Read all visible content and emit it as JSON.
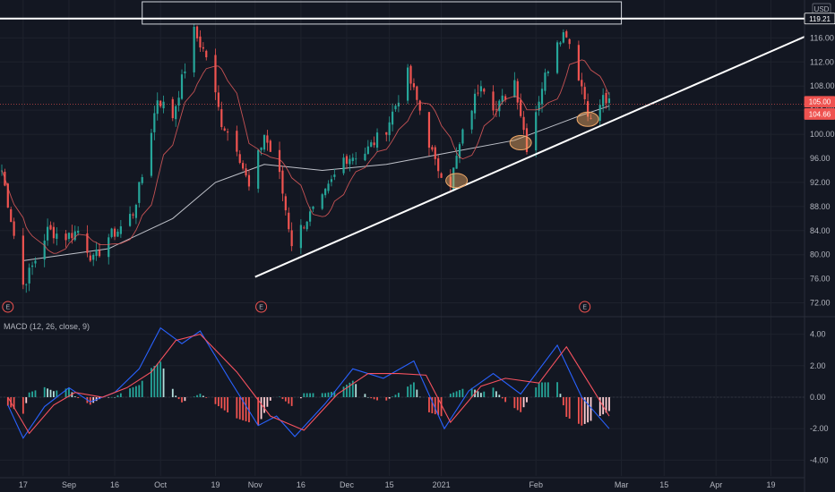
{
  "chart_data": [
    {
      "type": "candlestick",
      "currency": "USD",
      "ylim": [
        70,
        122
      ],
      "y_ticks": [
        72,
        76,
        80,
        84,
        88,
        92,
        96,
        100,
        104,
        108,
        112,
        116
      ],
      "y_tick_labels": [
        "72.00",
        "76.00",
        "80.00",
        "84.00",
        "88.00",
        "92.00",
        "96.00",
        "100.00",
        "104.00",
        "108.00",
        "112.00",
        "116.00"
      ],
      "x_tick_labels": [
        "17",
        "Sep",
        "16",
        "Oct",
        "19",
        "Nov",
        "16",
        "Dec",
        "15",
        "2021",
        "Feb",
        "Mar",
        "15",
        "Apr",
        "19"
      ],
      "price_labels": {
        "resistance": "119.21",
        "last": "105.00",
        "ma": "104.66"
      },
      "resistance_level": 119.21,
      "last_price": 105.0,
      "ma_value": 104.66,
      "earnings_markers": [
        "E",
        "E",
        "E"
      ],
      "colors": {
        "up": "#26a69a",
        "down": "#ef5350",
        "ma_long": "#d1d4dc",
        "ma_short": "#e45c5c",
        "trendline": "#ffffff"
      },
      "price_path": [
        {
          "date": "2020-08-10",
          "close": 94
        },
        {
          "date": "2020-08-13",
          "close": 86
        },
        {
          "date": "2020-08-17",
          "close": 75
        },
        {
          "date": "2020-08-20",
          "close": 78
        },
        {
          "date": "2020-08-25",
          "close": 84
        },
        {
          "date": "2020-08-31",
          "close": 83
        },
        {
          "date": "2020-09-04",
          "close": 84
        },
        {
          "date": "2020-09-09",
          "close": 79
        },
        {
          "date": "2020-09-14",
          "close": 83
        },
        {
          "date": "2020-09-17",
          "close": 84
        },
        {
          "date": "2020-09-22",
          "close": 87
        },
        {
          "date": "2020-09-25",
          "close": 93
        },
        {
          "date": "2020-09-30",
          "close": 106
        },
        {
          "date": "2020-10-05",
          "close": 103
        },
        {
          "date": "2020-10-12",
          "close": 117
        },
        {
          "date": "2020-10-16",
          "close": 113
        },
        {
          "date": "2020-10-21",
          "close": 102
        },
        {
          "date": "2020-10-26",
          "close": 98
        },
        {
          "date": "2020-10-30",
          "close": 91
        },
        {
          "date": "2020-11-04",
          "close": 100
        },
        {
          "date": "2020-11-09",
          "close": 93
        },
        {
          "date": "2020-11-13",
          "close": 82
        },
        {
          "date": "2020-11-18",
          "close": 86
        },
        {
          "date": "2020-11-23",
          "close": 89
        },
        {
          "date": "2020-11-30",
          "close": 96
        },
        {
          "date": "2020-12-07",
          "close": 97
        },
        {
          "date": "2020-12-14",
          "close": 101
        },
        {
          "date": "2020-12-21",
          "close": 110
        },
        {
          "date": "2020-12-25",
          "close": 104
        },
        {
          "date": "2020-12-30",
          "close": 95
        },
        {
          "date": "2021-01-04",
          "close": 92
        },
        {
          "date": "2021-01-08",
          "close": 100
        },
        {
          "date": "2021-01-14",
          "close": 109
        },
        {
          "date": "2021-01-19",
          "close": 104
        },
        {
          "date": "2021-01-25",
          "close": 109
        },
        {
          "date": "2021-01-29",
          "close": 98
        },
        {
          "date": "2021-02-03",
          "close": 108
        },
        {
          "date": "2021-02-08",
          "close": 116
        },
        {
          "date": "2021-02-11",
          "close": 117
        },
        {
          "date": "2021-02-16",
          "close": 108
        },
        {
          "date": "2021-02-19",
          "close": 102
        },
        {
          "date": "2021-02-23",
          "close": 106
        },
        {
          "date": "2021-02-25",
          "close": 105
        }
      ],
      "ma_long": [
        {
          "date": "2020-08-17",
          "value": 79
        },
        {
          "date": "2020-09-14",
          "value": 81
        },
        {
          "date": "2020-10-05",
          "value": 86
        },
        {
          "date": "2020-10-19",
          "value": 92
        },
        {
          "date": "2020-11-04",
          "value": 95
        },
        {
          "date": "2020-11-23",
          "value": 94
        },
        {
          "date": "2020-12-14",
          "value": 95
        },
        {
          "date": "2021-01-04",
          "value": 97
        },
        {
          "date": "2021-01-25",
          "value": 99
        },
        {
          "date": "2021-02-15",
          "value": 103
        },
        {
          "date": "2021-02-25",
          "value": 104.7
        }
      ],
      "trendline": {
        "start": {
          "date": "2020-11-01",
          "value": 76.3
        },
        "end": {
          "date": "2021-04-30",
          "value": 116.2
        }
      },
      "resistance_zone": {
        "low": 118.3,
        "high": 122.0
      },
      "marked_lows": [
        {
          "date": "2021-01-06",
          "value": 92.3
        },
        {
          "date": "2021-01-27",
          "value": 98.6
        },
        {
          "date": "2021-02-18",
          "value": 102.5
        }
      ]
    },
    {
      "type": "line",
      "title": "MACD (12, 26, close, 9)",
      "ylim": [
        -5,
        5
      ],
      "y_ticks": [
        -4,
        -2,
        0,
        2,
        4
      ],
      "y_tick_labels": [
        "-4.00",
        "-2.00",
        "0.00",
        "2.00",
        "4.00"
      ],
      "series": [
        {
          "color": "#2962ff",
          "values": [
            {
              "date": "2020-08-12",
              "value": -0.5
            },
            {
              "date": "2020-08-17",
              "value": -2.6
            },
            {
              "date": "2020-08-24",
              "value": -0.6
            },
            {
              "date": "2020-09-01",
              "value": 0.6
            },
            {
              "date": "2020-09-08",
              "value": -0.3
            },
            {
              "date": "2020-09-16",
              "value": 0.3
            },
            {
              "date": "2020-09-24",
              "value": 1.8
            },
            {
              "date": "2020-10-01",
              "value": 4.4
            },
            {
              "date": "2020-10-08",
              "value": 3.4
            },
            {
              "date": "2020-10-14",
              "value": 4.2
            },
            {
              "date": "2020-10-24",
              "value": 1.0
            },
            {
              "date": "2020-11-02",
              "value": -1.8
            },
            {
              "date": "2020-11-08",
              "value": -1.2
            },
            {
              "date": "2020-11-14",
              "value": -2.5
            },
            {
              "date": "2020-11-24",
              "value": -0.4
            },
            {
              "date": "2020-12-03",
              "value": 1.8
            },
            {
              "date": "2020-12-13",
              "value": 1.2
            },
            {
              "date": "2020-12-23",
              "value": 2.3
            },
            {
              "date": "2021-01-02",
              "value": -2.0
            },
            {
              "date": "2021-01-10",
              "value": 0.4
            },
            {
              "date": "2021-01-18",
              "value": 1.5
            },
            {
              "date": "2021-01-27",
              "value": 0.2
            },
            {
              "date": "2021-02-08",
              "value": 3.3
            },
            {
              "date": "2021-02-16",
              "value": 0.0
            },
            {
              "date": "2021-02-25",
              "value": -2.0
            }
          ]
        },
        {
          "color": "#f7525f",
          "values": [
            {
              "date": "2020-08-12",
              "value": 0.0
            },
            {
              "date": "2020-08-19",
              "value": -2.3
            },
            {
              "date": "2020-08-27",
              "value": -0.5
            },
            {
              "date": "2020-09-03",
              "value": 0.3
            },
            {
              "date": "2020-09-12",
              "value": 0.0
            },
            {
              "date": "2020-09-20",
              "value": 0.6
            },
            {
              "date": "2020-09-28",
              "value": 1.6
            },
            {
              "date": "2020-10-06",
              "value": 3.6
            },
            {
              "date": "2020-10-14",
              "value": 4.0
            },
            {
              "date": "2020-10-26",
              "value": 1.6
            },
            {
              "date": "2020-11-06",
              "value": -1.2
            },
            {
              "date": "2020-11-17",
              "value": -2.1
            },
            {
              "date": "2020-11-28",
              "value": 0.2
            },
            {
              "date": "2020-12-08",
              "value": 1.5
            },
            {
              "date": "2020-12-18",
              "value": 1.5
            },
            {
              "date": "2020-12-27",
              "value": 1.4
            },
            {
              "date": "2021-01-04",
              "value": -1.6
            },
            {
              "date": "2021-01-14",
              "value": 0.7
            },
            {
              "date": "2021-01-22",
              "value": 1.2
            },
            {
              "date": "2021-02-02",
              "value": 0.9
            },
            {
              "date": "2021-02-11",
              "value": 3.2
            },
            {
              "date": "2021-02-19",
              "value": 0.7
            },
            {
              "date": "2021-02-25",
              "value": -1.2
            }
          ]
        }
      ],
      "histogram_colors": {
        "pos_up": "#26a69a",
        "pos_down": "#b2dfdb",
        "neg_down": "#ef5350",
        "neg_up": "#ffcdd2"
      }
    }
  ]
}
